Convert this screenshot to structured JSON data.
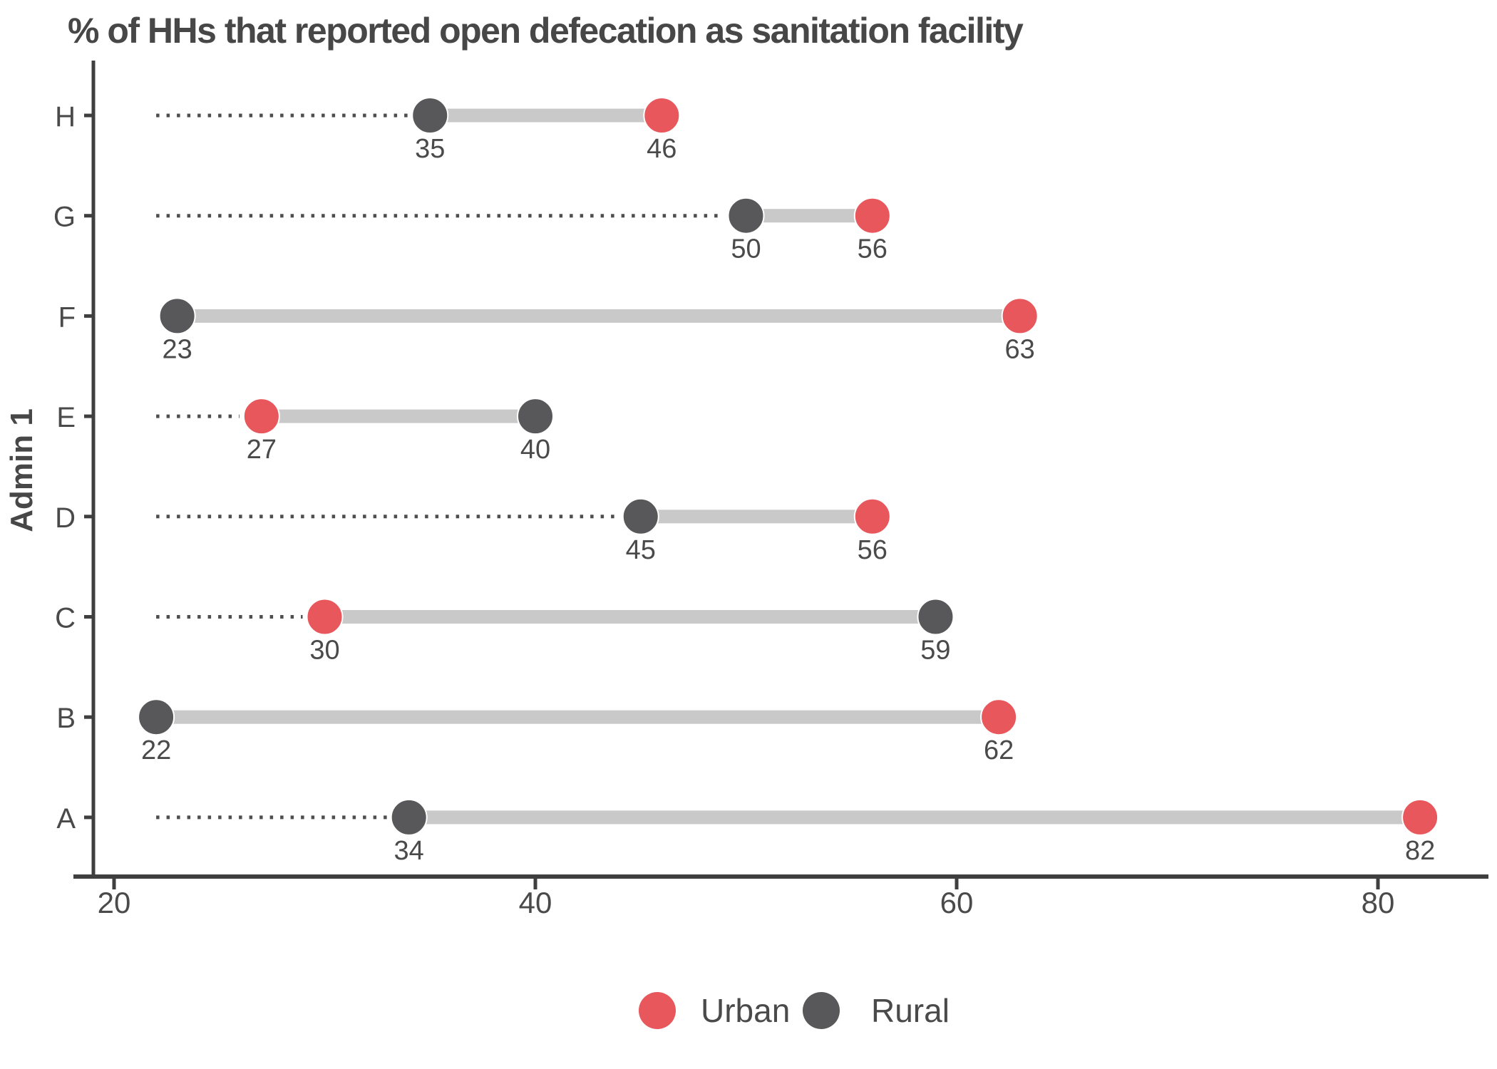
{
  "chart_data": {
    "type": "dumbbell",
    "title": "% of HHs that reported open defecation as sanitation facility",
    "ylabel": "Admin 1",
    "xlabel": "",
    "legend_position": "bottom",
    "grid": "off",
    "x_axis": {
      "ticks": [
        20,
        40,
        60,
        80
      ],
      "range": [
        19,
        84
      ]
    },
    "categories_top_to_bottom": [
      "H",
      "G",
      "F",
      "E",
      "D",
      "C",
      "B",
      "A"
    ],
    "series": [
      {
        "name": "Urban",
        "color": "#E8575C",
        "values": {
          "H": 46,
          "G": 56,
          "F": 63,
          "E": 27,
          "D": 56,
          "C": 30,
          "B": 62,
          "A": 82
        }
      },
      {
        "name": "Rural",
        "color": "#58585A",
        "values": {
          "H": 35,
          "G": 50,
          "F": 23,
          "E": 40,
          "D": 45,
          "C": 59,
          "B": 22,
          "A": 34
        }
      }
    ],
    "connector_color": "#C9C9C9",
    "dotted_leader": {
      "color": "#4E4E4E",
      "start_value": 22
    },
    "text_color": "#474747",
    "axis_color": "#3F3F3F"
  }
}
